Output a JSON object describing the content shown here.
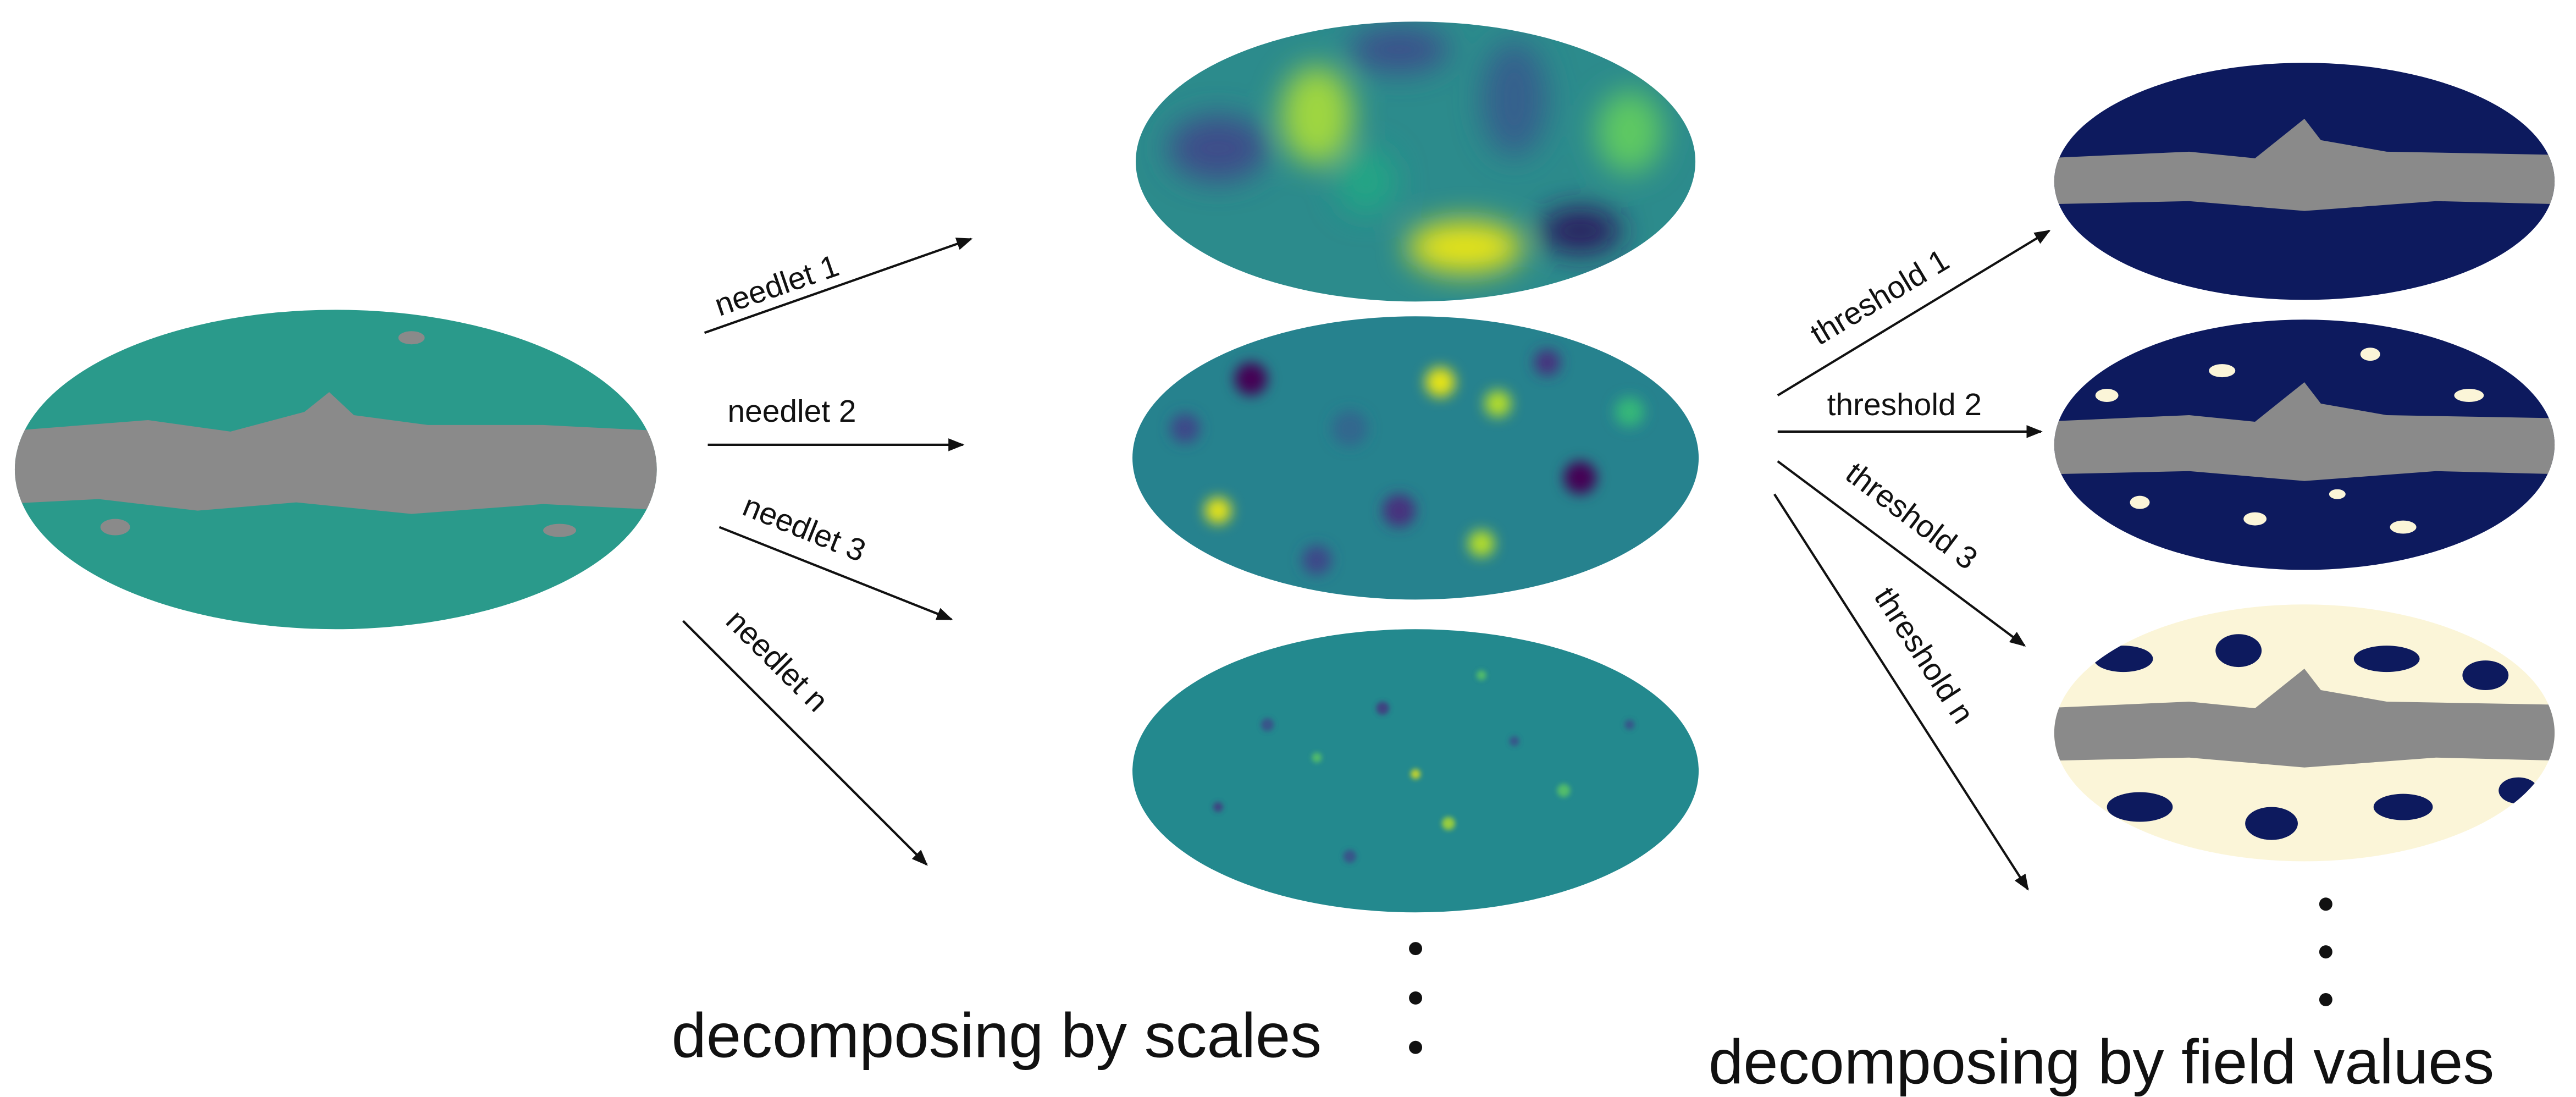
{
  "needlet_labels": [
    "needlet 1",
    "needlet 2",
    "needlet 3",
    "needlet n"
  ],
  "threshold_labels": [
    "threshold 1",
    "threshold 2",
    "threshold 3",
    "threshold n"
  ],
  "captions": {
    "scales": "decomposing by scales",
    "field_values": "decomposing by field values"
  }
}
